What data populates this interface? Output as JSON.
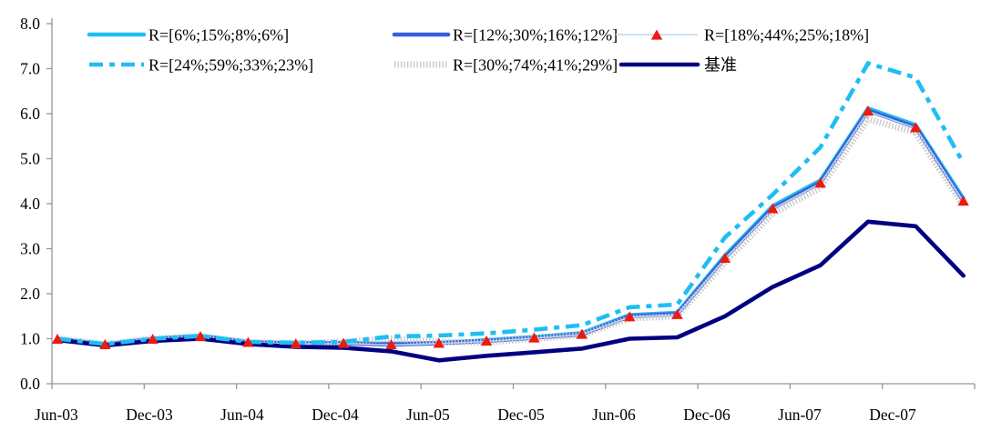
{
  "chart_data": {
    "type": "line",
    "title": "",
    "xlabel": "",
    "ylabel": "",
    "ylim": [
      0.0,
      8.0
    ],
    "y_tick_interval": 1.0,
    "y_tick_labels": [
      "0.0",
      "1.0",
      "2.0",
      "3.0",
      "4.0",
      "5.0",
      "6.0",
      "7.0",
      "8.0"
    ],
    "x_tick_labels": [
      "Jun-03",
      "Dec-03",
      "Jun-04",
      "Dec-04",
      "Jun-05",
      "Dec-05",
      "Jun-06",
      "Dec-06",
      "Jun-07",
      "Dec-07"
    ],
    "grid": false,
    "legend_position": "top",
    "categories": [
      "Jun-03",
      "Sep-03",
      "Dec-03",
      "Mar-04",
      "Jun-04",
      "Sep-04",
      "Dec-04",
      "Mar-05",
      "Jun-05",
      "Sep-05",
      "Dec-05",
      "Mar-06",
      "Jun-06",
      "Sep-06",
      "Dec-06",
      "Mar-07",
      "Jun-07",
      "Sep-07",
      "Dec-07",
      "Mar-08"
    ],
    "series": [
      {
        "name": "R=[6%;15%;8%;6%]",
        "style": "solid",
        "color": "#1FBEF2",
        "values": [
          1.0,
          0.88,
          1.0,
          1.07,
          0.93,
          0.9,
          0.91,
          0.89,
          0.91,
          0.97,
          1.04,
          1.13,
          1.53,
          1.58,
          2.85,
          3.95,
          4.52,
          6.12,
          5.75,
          4.12
        ]
      },
      {
        "name": "R=[12%;30%;16%;12%]",
        "style": "solid",
        "color": "#3A5FDB",
        "values": [
          0.99,
          0.87,
          0.99,
          1.05,
          0.92,
          0.89,
          0.9,
          0.87,
          0.9,
          0.95,
          1.02,
          1.1,
          1.5,
          1.55,
          2.8,
          3.9,
          4.47,
          6.07,
          5.7,
          4.06
        ]
      },
      {
        "name": "R=[18%;44%;25%;18%]",
        "style": "triangle-markers",
        "color": "#EE1A0F",
        "line_color": "#BDD7EE",
        "values": [
          0.98,
          0.86,
          0.98,
          1.04,
          0.91,
          0.88,
          0.89,
          0.86,
          0.89,
          0.94,
          1.01,
          1.09,
          1.48,
          1.53,
          2.78,
          3.88,
          4.45,
          6.05,
          5.68,
          4.05
        ]
      },
      {
        "name": "R=[24%;59%;33%;23%]",
        "style": "dash-dot",
        "color": "#1FBEF2",
        "values": [
          1.0,
          0.88,
          1.0,
          1.06,
          0.93,
          0.91,
          0.93,
          1.05,
          1.07,
          1.12,
          1.2,
          1.3,
          1.7,
          1.76,
          3.25,
          4.2,
          5.25,
          7.12,
          6.8,
          4.9
        ]
      },
      {
        "name": "R=[30%;74%;41%;29%]",
        "style": "hatched",
        "color": "#C8C8C8",
        "values": [
          1.0,
          0.88,
          1.0,
          1.05,
          0.92,
          0.9,
          0.93,
          1.0,
          0.93,
          0.92,
          1.0,
          1.08,
          1.45,
          1.5,
          2.7,
          3.78,
          4.35,
          5.88,
          5.58,
          3.95
        ]
      },
      {
        "name": "基准",
        "style": "solid",
        "color": "#000080",
        "values": [
          0.97,
          0.85,
          0.95,
          1.0,
          0.88,
          0.82,
          0.8,
          0.72,
          0.52,
          0.62,
          0.7,
          0.78,
          1.0,
          1.03,
          1.5,
          2.15,
          2.63,
          3.6,
          3.5,
          2.4
        ]
      }
    ],
    "axis_color": "#969696"
  }
}
